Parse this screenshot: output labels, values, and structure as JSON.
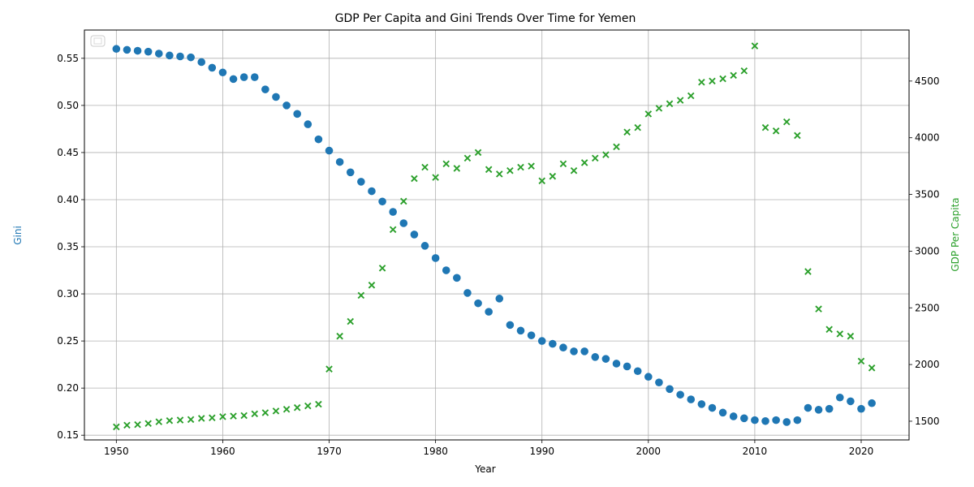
{
  "chart_data": {
    "type": "scatter",
    "title": "GDP Per Capita and Gini Trends Over Time for Yemen",
    "xlabel": "Year",
    "ylabel_left": "Gini",
    "ylabel_right": "GDP Per Capita",
    "xlim": [
      1947,
      2024.5
    ],
    "ylim_left": [
      0.145,
      0.58
    ],
    "ylim_right": [
      1335,
      4950
    ],
    "x_ticks": [
      1950,
      1960,
      1970,
      1980,
      1990,
      2000,
      2010,
      2020
    ],
    "y_left_ticks": [
      0.15,
      0.2,
      0.25,
      0.3,
      0.35,
      0.4,
      0.45,
      0.5,
      0.55
    ],
    "y_left_tick_labels": [
      "0.15",
      "0.20",
      "0.25",
      "0.30",
      "0.35",
      "0.40",
      "0.45",
      "0.50",
      "0.55"
    ],
    "y_right_ticks": [
      1500,
      2000,
      2500,
      3000,
      3500,
      4000,
      4500
    ],
    "grid": true,
    "legend": "top-left (empty)",
    "colors": {
      "gini": "#1f77b4",
      "gdp": "#2ca02c"
    },
    "x": [
      1950,
      1951,
      1952,
      1953,
      1954,
      1955,
      1956,
      1957,
      1958,
      1959,
      1960,
      1961,
      1962,
      1963,
      1964,
      1965,
      1966,
      1967,
      1968,
      1969,
      1970,
      1971,
      1972,
      1973,
      1974,
      1975,
      1976,
      1977,
      1978,
      1979,
      1980,
      1981,
      1982,
      1983,
      1984,
      1985,
      1986,
      1987,
      1988,
      1989,
      1990,
      1991,
      1992,
      1993,
      1994,
      1995,
      1996,
      1997,
      1998,
      1999,
      2000,
      2001,
      2002,
      2003,
      2004,
      2005,
      2006,
      2007,
      2008,
      2009,
      2010,
      2011,
      2012,
      2013,
      2014,
      2015,
      2016,
      2017,
      2018,
      2019,
      2020,
      2021
    ],
    "series": [
      {
        "marker": "circle",
        "axis": "left",
        "values": [
          0.56,
          0.559,
          0.558,
          0.557,
          0.555,
          0.553,
          0.552,
          0.551,
          0.546,
          0.54,
          0.535,
          0.528,
          0.53,
          0.53,
          0.517,
          0.509,
          0.5,
          0.491,
          0.48,
          0.464,
          0.452,
          0.44,
          0.429,
          0.419,
          0.409,
          0.398,
          0.387,
          0.375,
          0.363,
          0.351,
          0.338,
          0.325,
          0.317,
          0.301,
          0.29,
          0.281,
          0.295,
          0.267,
          0.261,
          0.256,
          0.25,
          0.247,
          0.243,
          0.239,
          0.239,
          0.233,
          0.231,
          0.226,
          0.223,
          0.218,
          0.212,
          0.206,
          0.199,
          0.193,
          0.188,
          0.183,
          0.179,
          0.174,
          0.17,
          0.168,
          0.166,
          0.165,
          0.166,
          0.164,
          0.166,
          0.179,
          0.177,
          0.178,
          0.19,
          0.186,
          0.178,
          0.184
        ]
      },
      {
        "marker": "x",
        "axis": "right",
        "values": [
          1450,
          1465,
          1470,
          1480,
          1495,
          1505,
          1510,
          1515,
          1525,
          1530,
          1540,
          1545,
          1550,
          1565,
          1575,
          1590,
          1605,
          1620,
          1635,
          1650,
          1960,
          2250,
          2380,
          2610,
          2700,
          2850,
          3190,
          3440,
          3640,
          3740,
          3650,
          3770,
          3730,
          3820,
          3870,
          3720,
          3680,
          3710,
          3740,
          3750,
          3620,
          3660,
          3770,
          3710,
          3780,
          3820,
          3850,
          3920,
          4050,
          4090,
          4210,
          4260,
          4300,
          4330,
          4370,
          4490,
          4500,
          4520,
          4550,
          4590,
          4810,
          4090,
          4060,
          4140,
          4020,
          2820,
          2490,
          2310,
          2270,
          2250,
          2030,
          1970
        ]
      }
    ]
  }
}
